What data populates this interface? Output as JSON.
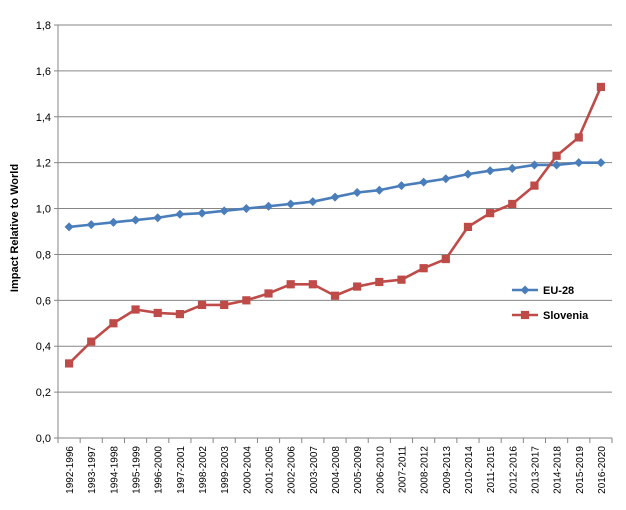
{
  "chart_data": {
    "type": "line",
    "ylabel": "Impact Relative to World",
    "xlabel": "",
    "title": "",
    "ylim": [
      0,
      1.8
    ],
    "ytick_step": 0.2,
    "ytick_labels": [
      "0,0",
      "0,2",
      "0,4",
      "0,6",
      "0,8",
      "1,0",
      "1,2",
      "1,4",
      "1,6",
      "1,8"
    ],
    "grid": "horizontal",
    "legend_position": "right",
    "categories": [
      "1992-1996",
      "1993-1997",
      "1994-1998",
      "1995-1999",
      "1996-2000",
      "1997-2001",
      "1998-2002",
      "1999-2003",
      "2000-2004",
      "2001-2005",
      "2002-2006",
      "2003-2007",
      "2004-2008",
      "2005-2009",
      "2006-2010",
      "2007-2011",
      "2008-2012",
      "2009-2013",
      "2010-2014",
      "2011-2015",
      "2012-2016",
      "2013-2017",
      "2014-2018",
      "2015-2019",
      "2016-2020"
    ],
    "series": [
      {
        "name": "EU-28",
        "color": "#4a7ebb",
        "marker": "diamond",
        "values": [
          0.92,
          0.93,
          0.94,
          0.95,
          0.96,
          0.975,
          0.98,
          0.99,
          1.0,
          1.01,
          1.02,
          1.03,
          1.05,
          1.07,
          1.08,
          1.1,
          1.115,
          1.13,
          1.15,
          1.165,
          1.175,
          1.19,
          1.19,
          1.2,
          1.2
        ]
      },
      {
        "name": "Slovenia",
        "color": "#be4b48",
        "marker": "square",
        "values": [
          0.325,
          0.42,
          0.5,
          0.56,
          0.545,
          0.54,
          0.58,
          0.58,
          0.6,
          0.63,
          0.67,
          0.67,
          0.62,
          0.66,
          0.68,
          0.69,
          0.74,
          0.78,
          0.92,
          0.98,
          1.02,
          1.1,
          1.23,
          1.31,
          1.53
        ]
      }
    ]
  }
}
